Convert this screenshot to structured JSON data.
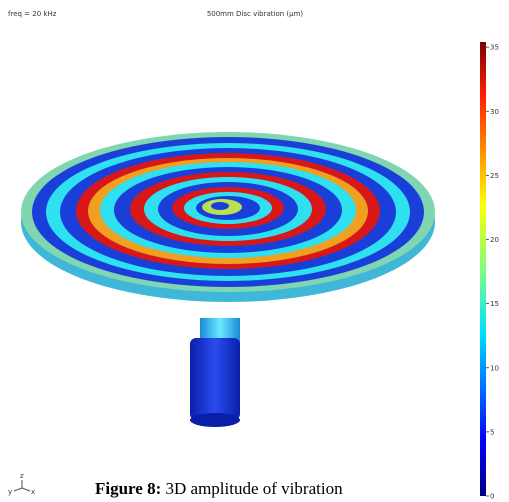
{
  "header": {
    "left": "freq = 20 kHz",
    "title": "500mm Disc vibration (µm)"
  },
  "colorbar": {
    "range": [
      0,
      35.4
    ],
    "ticks": [
      0,
      5,
      10,
      15,
      20,
      25,
      30,
      35
    ]
  },
  "triad": {
    "z": "z",
    "y": "y",
    "x": "x"
  },
  "caption": {
    "label": "Figure 8:",
    "text": "3D amplitude of vibration"
  }
}
